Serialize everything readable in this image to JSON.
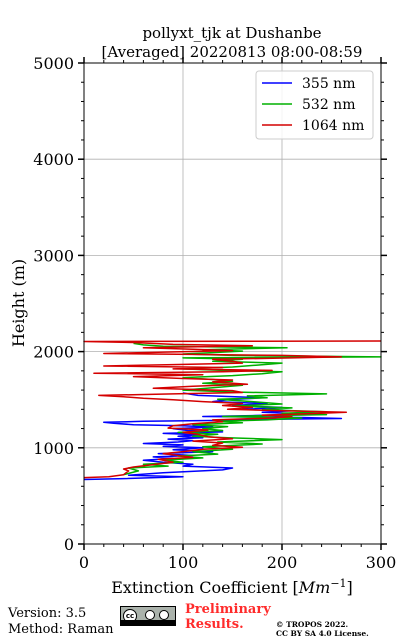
{
  "chart_data": {
    "type": "line",
    "title": [
      "pollyxt_tjk at Dushanbe",
      "[Averaged] 20220813 08:00-08:59"
    ],
    "xlabel": "Extinction Coefficient [Mm⁻¹]",
    "xlabel_main": "Extinction Coefficient [",
    "xlabel_unit": "Mm",
    "xlabel_exp": "−1",
    "xlabel_close": "]",
    "ylabel": "Height (m)",
    "xlim": [
      0,
      300
    ],
    "ylim": [
      0,
      5000
    ],
    "xticks": [
      0,
      100,
      200,
      300
    ],
    "yticks": [
      0,
      1000,
      2000,
      3000,
      4000,
      5000
    ],
    "grid": true,
    "legend_position": "top-right",
    "series": [
      {
        "name": "355 nm",
        "color": "#0000ff",
        "points": [
          [
            0,
            670
          ],
          [
            40,
            680
          ],
          [
            100,
            700
          ],
          [
            45,
            715
          ],
          [
            80,
            740
          ],
          [
            140,
            770
          ],
          [
            150,
            790
          ],
          [
            100,
            810
          ],
          [
            110,
            830
          ],
          [
            80,
            850
          ],
          [
            60,
            870
          ],
          [
            90,
            890
          ],
          [
            70,
            905
          ],
          [
            110,
            920
          ],
          [
            75,
            940
          ],
          [
            130,
            960
          ],
          [
            90,
            980
          ],
          [
            120,
            1000
          ],
          [
            80,
            1015
          ],
          [
            100,
            1030
          ],
          [
            60,
            1045
          ],
          [
            95,
            1060
          ],
          [
            110,
            1075
          ],
          [
            85,
            1090
          ],
          [
            120,
            1105
          ],
          [
            95,
            1120
          ],
          [
            115,
            1135
          ],
          [
            80,
            1150
          ],
          [
            140,
            1165
          ],
          [
            105,
            1180
          ],
          [
            90,
            1200
          ],
          [
            130,
            1215
          ],
          [
            100,
            1230
          ],
          [
            50,
            1240
          ],
          [
            30,
            1255
          ],
          [
            20,
            1265
          ],
          [
            60,
            1275
          ],
          [
            140,
            1285
          ],
          [
            180,
            1295
          ],
          [
            260,
            1305
          ],
          [
            220,
            1315
          ],
          [
            120,
            1325
          ],
          [
            170,
            1335
          ],
          [
            230,
            1350
          ],
          [
            180,
            1370
          ],
          [
            210,
            1385
          ],
          [
            160,
            1400
          ],
          [
            200,
            1420
          ],
          [
            150,
            1440
          ],
          [
            185,
            1460
          ],
          [
            130,
            1480
          ],
          [
            145,
            1500
          ],
          [
            180,
            1520
          ],
          [
            115,
            1545
          ],
          [
            100,
            1570
          ]
        ]
      },
      {
        "name": "532 nm",
        "color": "#00b000",
        "points": [
          [
            40,
            720
          ],
          [
            55,
            760
          ],
          [
            45,
            790
          ],
          [
            85,
            810
          ],
          [
            60,
            830
          ],
          [
            100,
            850
          ],
          [
            80,
            870
          ],
          [
            120,
            895
          ],
          [
            95,
            915
          ],
          [
            135,
            935
          ],
          [
            110,
            960
          ],
          [
            150,
            985
          ],
          [
            120,
            1010
          ],
          [
            180,
            1040
          ],
          [
            135,
            1060
          ],
          [
            200,
            1085
          ],
          [
            145,
            1105
          ],
          [
            110,
            1120
          ],
          [
            135,
            1140
          ],
          [
            95,
            1160
          ],
          [
            140,
            1180
          ],
          [
            120,
            1200
          ],
          [
            145,
            1220
          ],
          [
            110,
            1240
          ],
          [
            160,
            1260
          ],
          [
            135,
            1275
          ],
          [
            185,
            1290
          ],
          [
            220,
            1310
          ],
          [
            140,
            1325
          ],
          [
            245,
            1345
          ],
          [
            200,
            1360
          ],
          [
            245,
            1375
          ],
          [
            180,
            1395
          ],
          [
            210,
            1415
          ],
          [
            150,
            1435
          ],
          [
            200,
            1455
          ],
          [
            170,
            1480
          ],
          [
            135,
            1505
          ],
          [
            185,
            1520
          ],
          [
            165,
            1540
          ],
          [
            245,
            1560
          ],
          [
            150,
            1580
          ],
          [
            100,
            1600
          ],
          [
            130,
            1625
          ],
          [
            160,
            1650
          ],
          [
            120,
            1670
          ],
          [
            150,
            1690
          ],
          [
            130,
            1710
          ],
          [
            100,
            1730
          ],
          [
            150,
            1750
          ],
          [
            180,
            1770
          ],
          [
            200,
            1790
          ],
          [
            140,
            1805
          ],
          [
            100,
            1820
          ],
          [
            150,
            1840
          ],
          [
            175,
            1860
          ],
          [
            200,
            1880
          ],
          [
            130,
            1900
          ],
          [
            160,
            1920
          ],
          [
            100,
            1935
          ],
          [
            300,
            1945
          ],
          [
            150,
            1960
          ],
          [
            100,
            1975
          ],
          [
            130,
            1990
          ],
          [
            160,
            2005
          ],
          [
            120,
            2020
          ],
          [
            205,
            2040
          ],
          [
            80,
            2055
          ],
          [
            60,
            2070
          ],
          [
            50,
            2085
          ]
        ]
      },
      {
        "name": "1064 nm",
        "color": "#d40000",
        "points": [
          [
            0,
            690
          ],
          [
            25,
            700
          ],
          [
            40,
            720
          ],
          [
            45,
            760
          ],
          [
            40,
            780
          ],
          [
            50,
            800
          ],
          [
            70,
            825
          ],
          [
            90,
            850
          ],
          [
            75,
            880
          ],
          [
            110,
            900
          ],
          [
            95,
            920
          ],
          [
            80,
            940
          ],
          [
            100,
            960
          ],
          [
            120,
            985
          ],
          [
            160,
            1005
          ],
          [
            130,
            1025
          ],
          [
            140,
            1050
          ],
          [
            110,
            1070
          ],
          [
            150,
            1095
          ],
          [
            125,
            1115
          ],
          [
            115,
            1140
          ],
          [
            100,
            1160
          ],
          [
            125,
            1185
          ],
          [
            85,
            1205
          ],
          [
            90,
            1230
          ],
          [
            110,
            1250
          ],
          [
            140,
            1270
          ],
          [
            130,
            1290
          ],
          [
            190,
            1310
          ],
          [
            210,
            1325
          ],
          [
            180,
            1340
          ],
          [
            230,
            1355
          ],
          [
            265,
            1370
          ],
          [
            200,
            1385
          ],
          [
            145,
            1400
          ],
          [
            170,
            1420
          ],
          [
            140,
            1440
          ],
          [
            160,
            1460
          ],
          [
            120,
            1480
          ],
          [
            90,
            1500
          ],
          [
            60,
            1515
          ],
          [
            40,
            1530
          ],
          [
            15,
            1545
          ],
          [
            90,
            1560
          ],
          [
            160,
            1575
          ],
          [
            150,
            1595
          ],
          [
            70,
            1620
          ],
          [
            110,
            1640
          ],
          [
            165,
            1660
          ],
          [
            130,
            1685
          ],
          [
            150,
            1705
          ],
          [
            100,
            1720
          ],
          [
            50,
            1740
          ],
          [
            120,
            1760
          ],
          [
            10,
            1775
          ],
          [
            140,
            1790
          ],
          [
            190,
            1805
          ],
          [
            90,
            1820
          ],
          [
            140,
            1835
          ],
          [
            20,
            1850
          ],
          [
            90,
            1865
          ],
          [
            160,
            1880
          ],
          [
            150,
            1900
          ],
          [
            130,
            1920
          ],
          [
            210,
            1935
          ],
          [
            260,
            1945
          ],
          [
            200,
            1960
          ],
          [
            120,
            1970
          ],
          [
            20,
            1980
          ],
          [
            80,
            1995
          ],
          [
            150,
            2010
          ],
          [
            110,
            2025
          ],
          [
            60,
            2040
          ],
          [
            170,
            2060
          ],
          [
            90,
            2075
          ],
          [
            50,
            2095
          ],
          [
            0,
            2105
          ],
          [
            300,
            2110
          ]
        ]
      }
    ]
  },
  "footer": {
    "version": "Version: 3.5",
    "method": "Method: Raman",
    "cc_label": "cc",
    "preliminary_line1": "Preliminary",
    "preliminary_line2": "Results.",
    "copyright_line1": "© TROPOS 2022.",
    "copyright_line2": "CC BY SA 4.0 License."
  }
}
